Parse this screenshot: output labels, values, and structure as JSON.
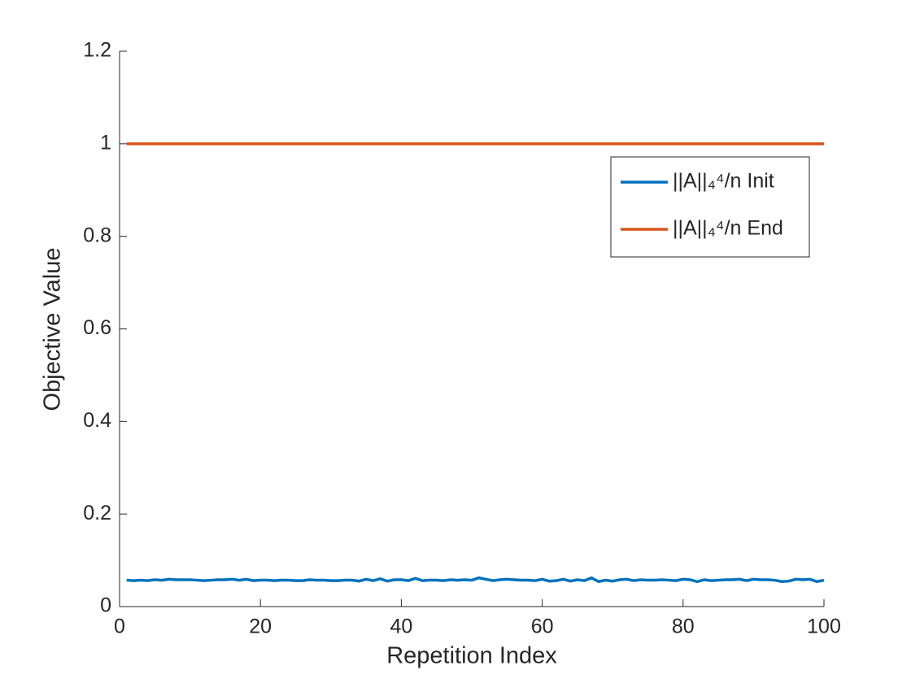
{
  "chart_data": {
    "type": "line",
    "xlabel": "Repetition Index",
    "ylabel": "Objective Value",
    "x": [
      1,
      2,
      3,
      4,
      5,
      6,
      7,
      8,
      9,
      10,
      11,
      12,
      13,
      14,
      15,
      16,
      17,
      18,
      19,
      20,
      21,
      22,
      23,
      24,
      25,
      26,
      27,
      28,
      29,
      30,
      31,
      32,
      33,
      34,
      35,
      36,
      37,
      38,
      39,
      40,
      41,
      42,
      43,
      44,
      45,
      46,
      47,
      48,
      49,
      50,
      51,
      52,
      53,
      54,
      55,
      56,
      57,
      58,
      59,
      60,
      61,
      62,
      63,
      64,
      65,
      66,
      67,
      68,
      69,
      70,
      71,
      72,
      73,
      74,
      75,
      76,
      77,
      78,
      79,
      80,
      81,
      82,
      83,
      84,
      85,
      86,
      87,
      88,
      89,
      90,
      91,
      92,
      93,
      94,
      95,
      96,
      97,
      98,
      99,
      100
    ],
    "series": [
      {
        "name": "||A||₄⁴/n Init",
        "color": "#0072bd",
        "values": [
          0.057,
          0.056,
          0.057,
          0.056,
          0.058,
          0.057,
          0.059,
          0.058,
          0.058,
          0.058,
          0.057,
          0.056,
          0.057,
          0.058,
          0.058,
          0.059,
          0.057,
          0.059,
          0.056,
          0.057,
          0.057,
          0.056,
          0.057,
          0.057,
          0.056,
          0.056,
          0.058,
          0.057,
          0.057,
          0.056,
          0.056,
          0.057,
          0.057,
          0.055,
          0.059,
          0.056,
          0.06,
          0.055,
          0.058,
          0.058,
          0.056,
          0.061,
          0.056,
          0.057,
          0.057,
          0.056,
          0.058,
          0.057,
          0.058,
          0.057,
          0.062,
          0.059,
          0.056,
          0.058,
          0.059,
          0.058,
          0.057,
          0.057,
          0.056,
          0.059,
          0.055,
          0.056,
          0.059,
          0.055,
          0.058,
          0.056,
          0.062,
          0.054,
          0.057,
          0.055,
          0.058,
          0.059,
          0.056,
          0.058,
          0.057,
          0.057,
          0.058,
          0.057,
          0.056,
          0.059,
          0.058,
          0.054,
          0.058,
          0.056,
          0.057,
          0.058,
          0.058,
          0.059,
          0.056,
          0.059,
          0.058,
          0.058,
          0.057,
          0.054,
          0.055,
          0.059,
          0.058,
          0.059,
          0.054,
          0.057
        ]
      },
      {
        "name": "||A||₄⁴/n End",
        "color": "#d95319",
        "values": [
          1,
          1,
          1,
          1,
          1,
          1,
          1,
          1,
          1,
          1,
          1,
          1,
          1,
          1,
          1,
          1,
          1,
          1,
          1,
          1,
          1,
          1,
          1,
          1,
          1,
          1,
          1,
          1,
          1,
          1,
          1,
          1,
          1,
          1,
          1,
          1,
          1,
          1,
          1,
          1,
          1,
          1,
          1,
          1,
          1,
          1,
          1,
          1,
          1,
          1,
          1,
          1,
          1,
          1,
          1,
          1,
          1,
          1,
          1,
          1,
          1,
          1,
          1,
          1,
          1,
          1,
          1,
          1,
          1,
          1,
          1,
          1,
          1,
          1,
          1,
          1,
          1,
          1,
          1,
          1,
          1,
          1,
          1,
          1,
          1,
          1,
          1,
          1,
          1,
          1,
          1,
          1,
          1,
          1,
          1,
          1,
          1,
          1,
          1,
          1
        ]
      }
    ],
    "xlim": [
      0,
      100
    ],
    "xticks": [
      0,
      20,
      40,
      60,
      80,
      100
    ],
    "ylim": [
      0,
      1.2
    ],
    "yticks": [
      0,
      0.2,
      0.4,
      0.6,
      0.8,
      1,
      1.2
    ],
    "grid": false,
    "legend": "upper right"
  }
}
